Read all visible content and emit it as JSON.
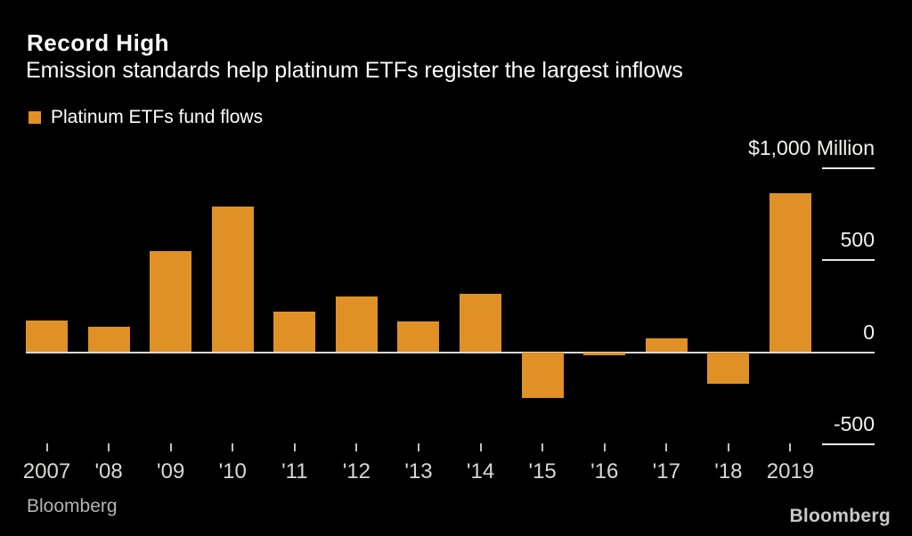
{
  "header": {
    "title": "Record High",
    "subtitle": "Emission standards help platinum ETFs register the largest inflows"
  },
  "legend": {
    "label": "Platinum ETFs fund flows",
    "swatch_color": "#DF9126"
  },
  "chart_data": {
    "type": "bar",
    "title": "Record High",
    "subtitle": "Emission standards help platinum ETFs register the largest inflows",
    "series_name": "Platinum ETFs fund flows",
    "categories": [
      "2007",
      "'08",
      "'09",
      "'10",
      "'11",
      "'12",
      "'13",
      "'14",
      "'15",
      "'16",
      "'17",
      "'18",
      "2019"
    ],
    "values": [
      170,
      140,
      550,
      790,
      220,
      300,
      165,
      315,
      -250,
      -17,
      73,
      -170,
      860
    ],
    "unit": "$ Million",
    "y_ticks": [
      1000,
      500,
      0,
      -500
    ],
    "y_tick_labels": [
      "$1,000 Million",
      "500",
      "0",
      "-500"
    ],
    "ylim": [
      -560,
      1080
    ],
    "grid": false,
    "legend_position": "top-left",
    "bar_color": "#DF9126",
    "background_color": "#000000",
    "source": "Bloomberg"
  },
  "footer": {
    "source": "Bloomberg",
    "logo": "Bloomberg"
  }
}
